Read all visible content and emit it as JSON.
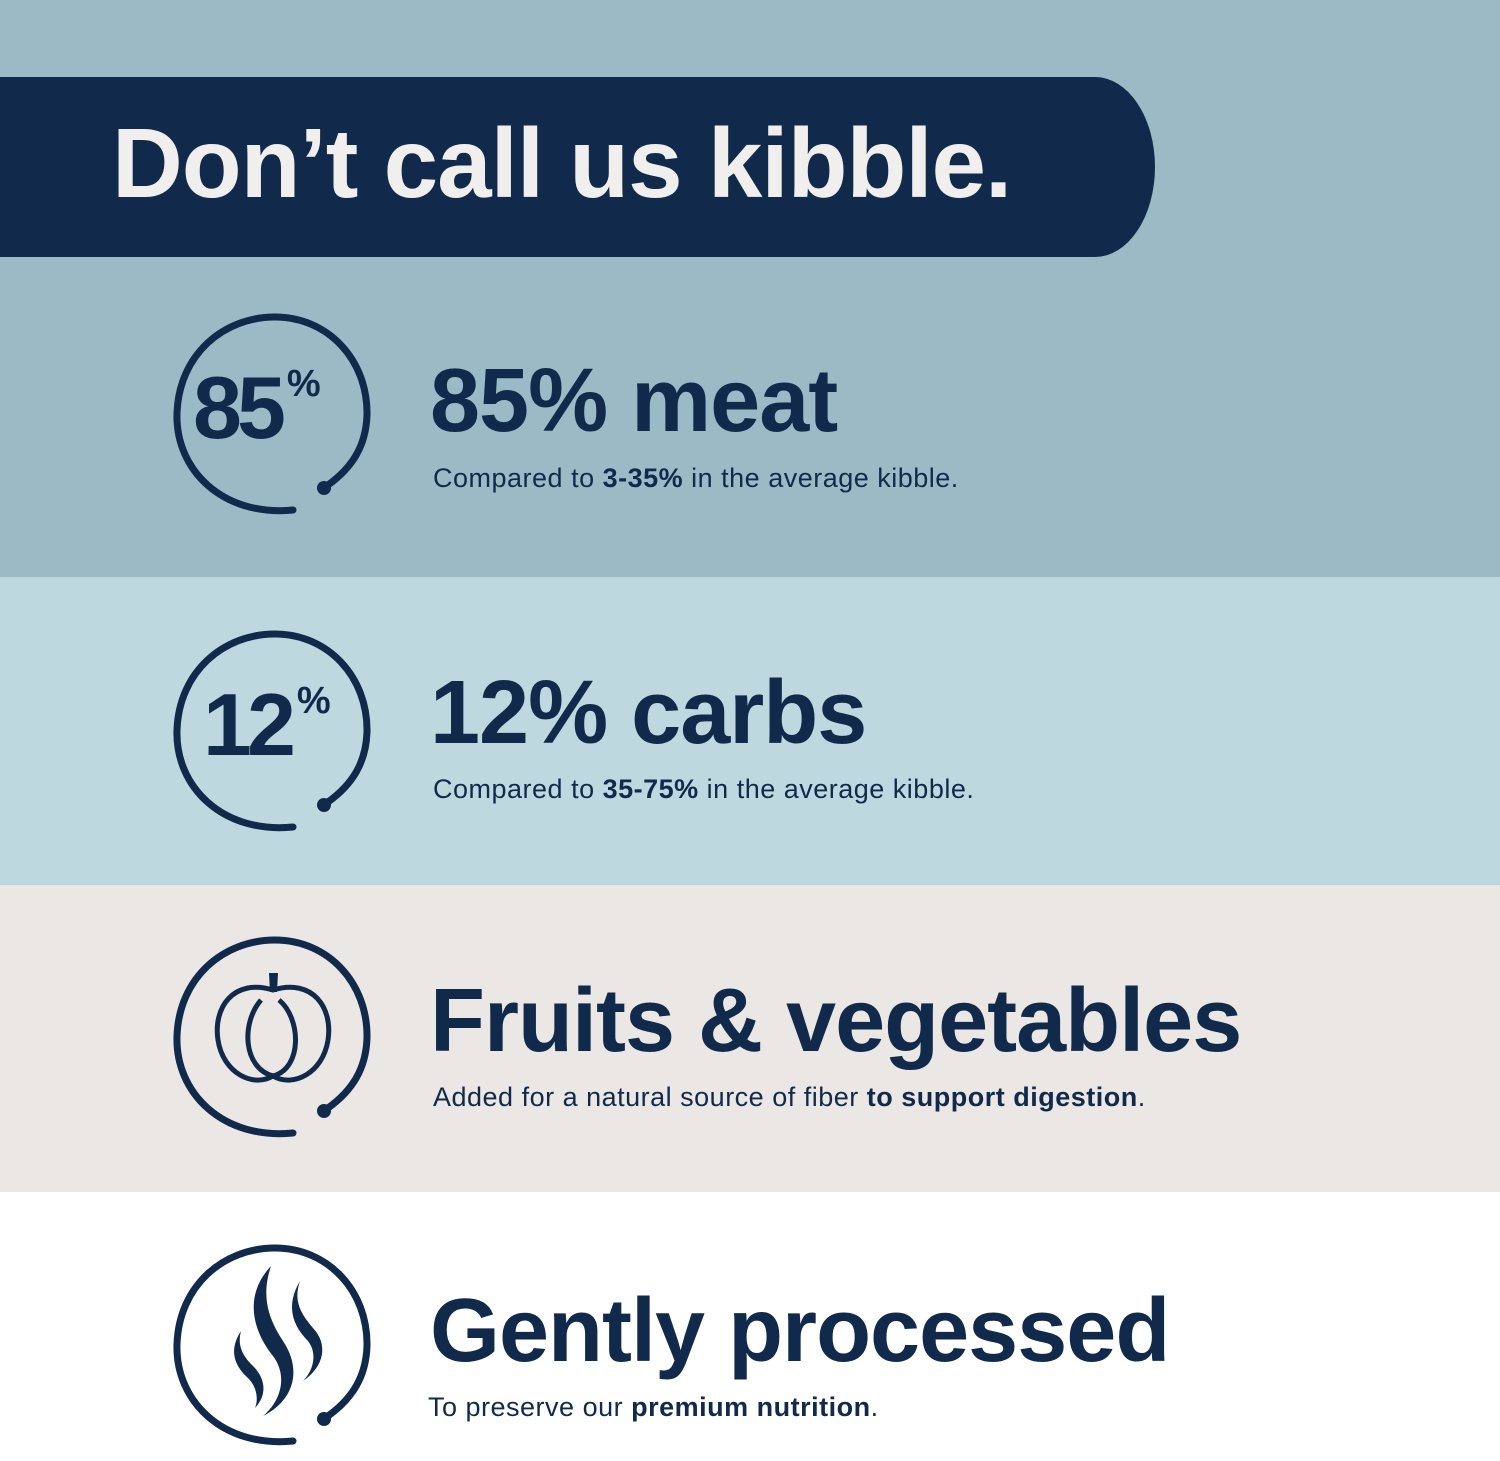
{
  "colors": {
    "navy": "#112a4b",
    "band_1": "#9bbac6",
    "band_2": "#bdd8df",
    "band_3": "#ebe7e4",
    "band_4": "#ffffff",
    "title_text": "#f1efed"
  },
  "title": "Don’t call us kibble.",
  "features": [
    {
      "icon": "percent-85-badge",
      "icon_number": "85",
      "icon_unit": "%",
      "headline": "85% meat",
      "sub_pre": "Compared to ",
      "sub_bold": "3-35%",
      "sub_post": " in the average kibble."
    },
    {
      "icon": "percent-12-badge",
      "icon_number": "12",
      "icon_unit": "%",
      "headline": "12% carbs",
      "sub_pre": "Compared to ",
      "sub_bold": "35-75%",
      "sub_post": " in the average kibble."
    },
    {
      "icon": "pumpkin-icon",
      "headline": "Fruits & vegetables",
      "sub_pre": "Added for a natural source of fiber ",
      "sub_bold": "to support digestion",
      "sub_post": "."
    },
    {
      "icon": "steam-icon",
      "headline": "Gently processed",
      "sub_pre": "To preserve our ",
      "sub_bold": "premium nutrition",
      "sub_post": "."
    }
  ]
}
